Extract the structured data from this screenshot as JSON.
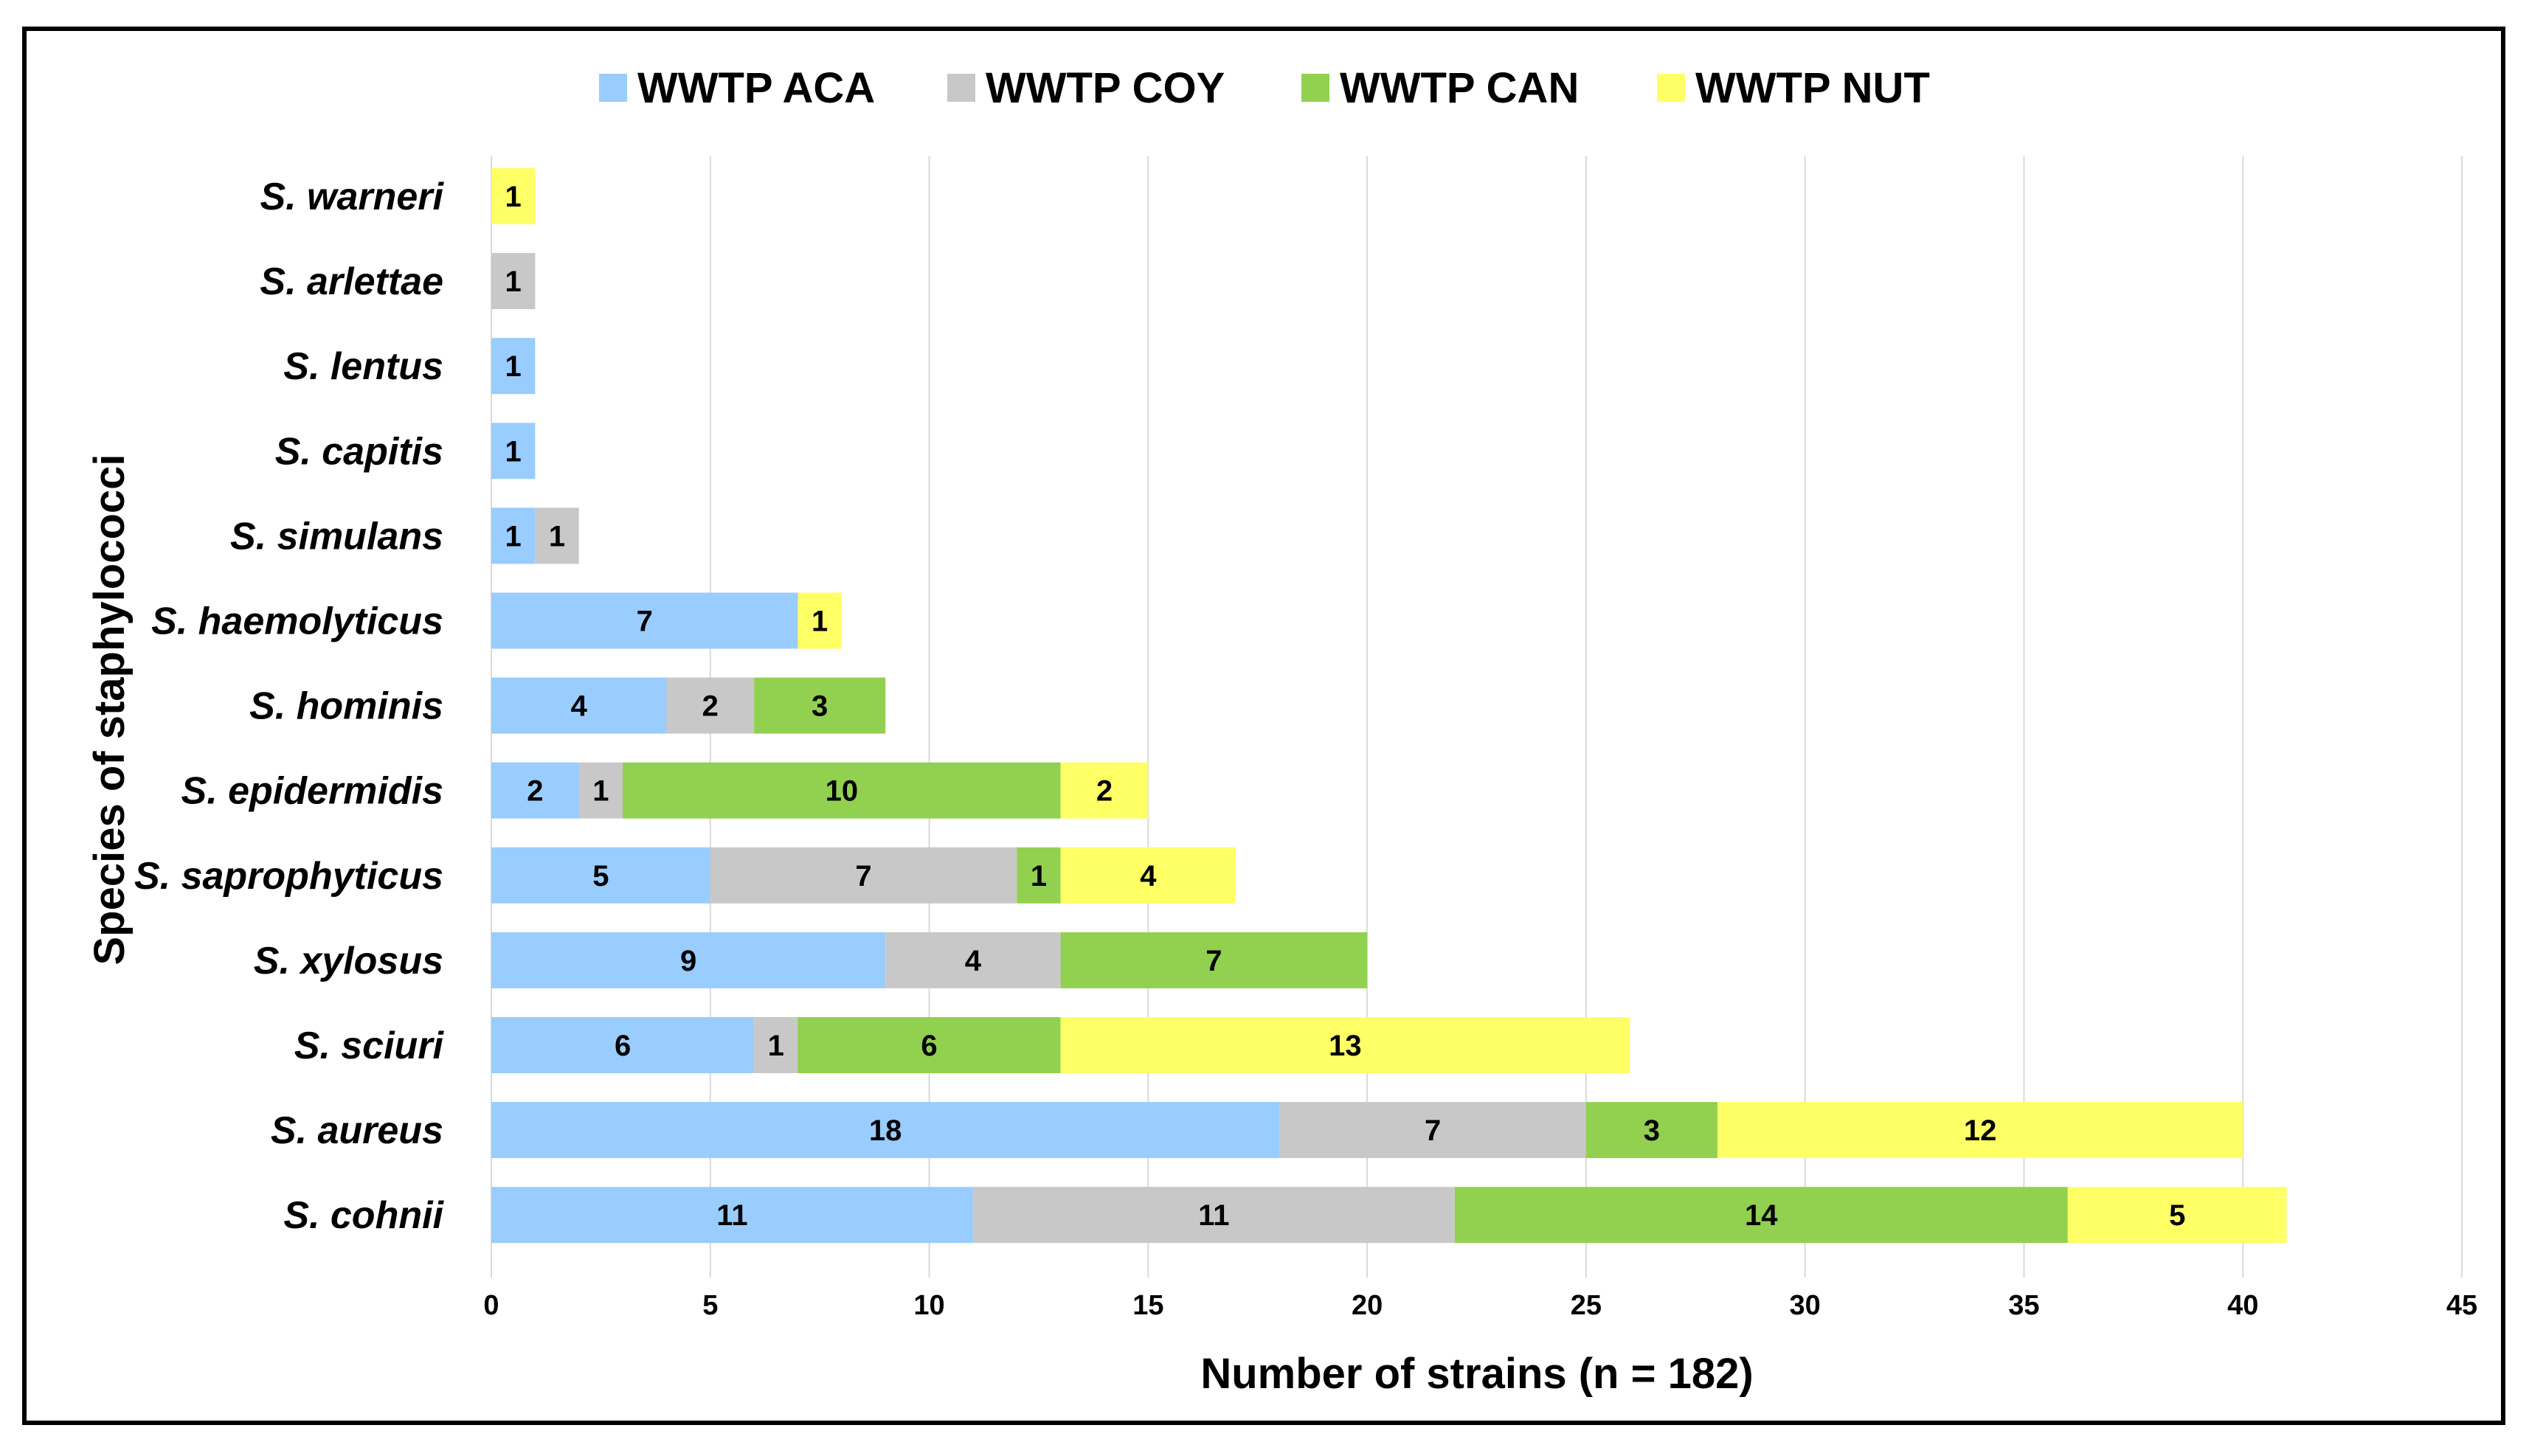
{
  "chart_data": {
    "type": "bar",
    "orientation": "horizontal",
    "stacked": true,
    "categories": [
      "S. warneri",
      "S. arlettae",
      "S. lentus",
      "S. capitis",
      "S. simulans",
      "S. haemolyticus",
      "S. hominis",
      "S. epidermidis",
      "S. saprophyticus",
      "S. xylosus",
      "S. sciuri",
      "S. aureus",
      "S. cohnii"
    ],
    "series": [
      {
        "name": "WWTP ACA",
        "color": "#99CCFF",
        "values": [
          0,
          0,
          1,
          1,
          1,
          7,
          4,
          2,
          5,
          9,
          6,
          18,
          11
        ]
      },
      {
        "name": "WWTP COY",
        "color": "#C8C8C8",
        "values": [
          0,
          1,
          0,
          0,
          1,
          0,
          2,
          1,
          7,
          4,
          1,
          7,
          11
        ]
      },
      {
        "name": "WWTP CAN",
        "color": "#92D050",
        "values": [
          0,
          0,
          0,
          0,
          0,
          0,
          3,
          10,
          1,
          7,
          6,
          3,
          14
        ]
      },
      {
        "name": "WWTP NUT",
        "color": "#FFFF66",
        "values": [
          1,
          0,
          0,
          0,
          0,
          1,
          0,
          2,
          4,
          0,
          13,
          12,
          5
        ]
      }
    ],
    "xlabel": "Number of strains (n = 182)",
    "ylabel": "Species of staphylococci",
    "xlim": [
      0,
      45
    ],
    "xticks": [
      0,
      5,
      10,
      15,
      20,
      25,
      30,
      35,
      40,
      45
    ],
    "grid": "vertical",
    "legend_position": "top",
    "data_labels": true
  }
}
